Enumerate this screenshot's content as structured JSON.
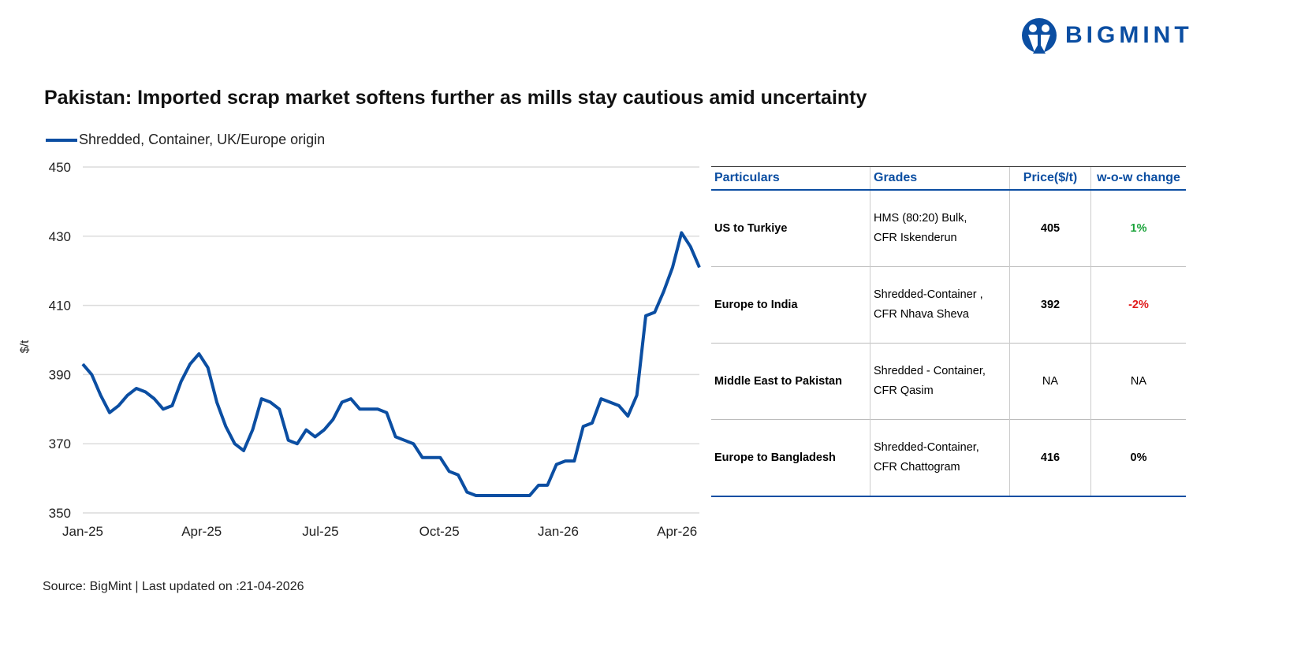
{
  "header": {
    "title": "Pakistan: Imported scrap market softens further as mills stay cautious amid uncertainty",
    "brand": "BIGMINT"
  },
  "footer": {
    "source": "Source: BigMint | Last updated on :21-04-2026"
  },
  "colors": {
    "line": "#0b4ea2",
    "positive": "#1aa33a",
    "negative": "#e01b1b"
  },
  "chart_data": {
    "type": "line",
    "title": "",
    "xlabel": "",
    "ylabel": "$/t",
    "ylim": [
      350,
      450
    ],
    "yticks": [
      350,
      370,
      390,
      410,
      430,
      450
    ],
    "xtick_labels": [
      "Jan-25",
      "Apr-25",
      "Jul-25",
      "Oct-25",
      "Jan-26",
      "Apr-26"
    ],
    "grid": true,
    "legend": "top-left",
    "series": [
      {
        "name": "Shredded, Container, UK/Europe origin",
        "values": [
          393,
          390,
          384,
          379,
          381,
          384,
          386,
          385,
          383,
          380,
          381,
          388,
          393,
          396,
          392,
          382,
          375,
          370,
          368,
          374,
          383,
          382,
          380,
          371,
          370,
          374,
          372,
          374,
          377,
          382,
          383,
          380,
          380,
          380,
          379,
          372,
          371,
          370,
          366,
          366,
          366,
          362,
          361,
          356,
          355,
          355,
          355,
          355,
          355,
          355,
          355,
          358,
          358,
          364,
          365,
          365,
          375,
          376,
          383,
          382,
          381,
          378,
          384,
          407,
          408,
          414,
          421,
          431,
          427,
          421
        ]
      }
    ]
  },
  "table": {
    "headers": [
      "Particulars",
      "Grades",
      "Price($/t)",
      "w-o-w change"
    ],
    "rows": [
      {
        "particular": "US to Turkiye",
        "grade1": "HMS (80:20) Bulk,",
        "grade2": "CFR Iskenderun",
        "price": "405",
        "change": "1%",
        "tone": "positive"
      },
      {
        "particular": "Europe to India",
        "grade1": "Shredded-Container ,",
        "grade2": "CFR Nhava Sheva",
        "price": "392",
        "change": "-2%",
        "tone": "negative"
      },
      {
        "particular": "Middle East to Pakistan",
        "grade1": "Shredded - Container,",
        "grade2": "CFR Qasim",
        "price": "NA",
        "change": "NA",
        "tone": "neutral"
      },
      {
        "particular": "Europe to Bangladesh",
        "grade1": "Shredded-Container,",
        "grade2": "CFR Chattogram",
        "price": "416",
        "change": "0%",
        "tone": "neutral-bold"
      }
    ]
  }
}
